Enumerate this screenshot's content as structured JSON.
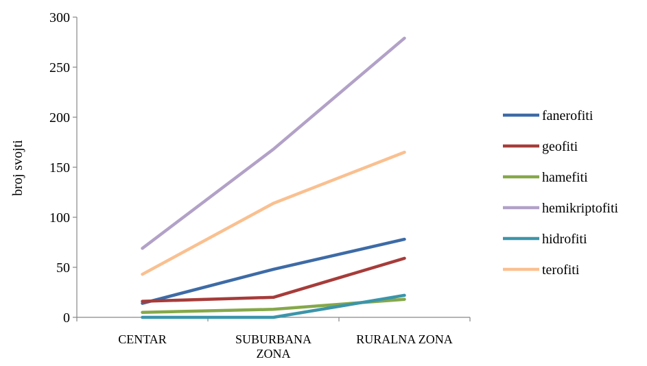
{
  "chart_data": {
    "type": "line",
    "title": "",
    "xlabel": "",
    "ylabel": "broj svojti",
    "categories": [
      "CENTAR",
      "SUBURBANA ZONA",
      "RURALNA ZONA"
    ],
    "category_label_lines": [
      [
        "CENTAR"
      ],
      [
        "SUBURBANA",
        "ZONA"
      ],
      [
        "RURALNA ZONA"
      ]
    ],
    "ylim": [
      0,
      300
    ],
    "yticks": [
      0,
      50,
      100,
      150,
      200,
      250,
      300
    ],
    "grid": false,
    "legend_position": "right",
    "series": [
      {
        "name": "fanerofiti",
        "color": "#3d6ba6",
        "values": [
          14,
          48,
          78
        ]
      },
      {
        "name": "geofiti",
        "color": "#a63c3a",
        "values": [
          16,
          20,
          59
        ]
      },
      {
        "name": "hamefiti",
        "color": "#86a84a",
        "values": [
          5,
          8,
          18
        ]
      },
      {
        "name": "hemikriptofiti",
        "color": "#b2a1c7",
        "values": [
          69,
          168,
          279
        ]
      },
      {
        "name": "hidrofiti",
        "color": "#3b95aa",
        "values": [
          0,
          0,
          22
        ]
      },
      {
        "name": "terofiti",
        "color": "#fac090",
        "values": [
          43,
          114,
          165
        ]
      }
    ],
    "draw_order": [
      3,
      5,
      0,
      1,
      2,
      4
    ]
  }
}
